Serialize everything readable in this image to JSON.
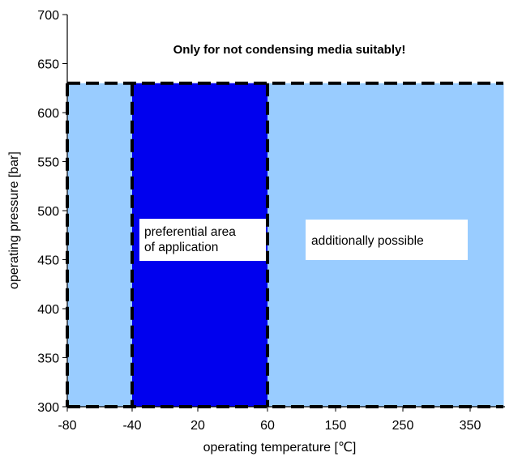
{
  "chart_data": {
    "type": "area",
    "title": "",
    "xlabel": "operating temperature [℃]",
    "ylabel": "operating pressure [bar]",
    "x_ticks": [
      "-80",
      "-40",
      "20",
      "60",
      "150",
      "250",
      "350"
    ],
    "y_ticks": [
      "300",
      "350",
      "400",
      "450",
      "500",
      "550",
      "600",
      "650",
      "700"
    ],
    "ylim": [
      300,
      700
    ],
    "x_scale": "non-linear (piecewise, ticks equally spaced)",
    "annotation": "Only for not condensing media suitably!",
    "regions": [
      {
        "label": "additionally possible",
        "x_range": [
          -80,
          400
        ],
        "y_range": [
          300,
          630
        ],
        "color": "#99ccff"
      },
      {
        "label_lines": [
          "preferential area",
          "of application"
        ],
        "x_range": [
          -40,
          60
        ],
        "y_range": [
          300,
          630
        ],
        "color": "#0000ee"
      }
    ],
    "boundary_style": "thick black dashed",
    "grid": false
  }
}
